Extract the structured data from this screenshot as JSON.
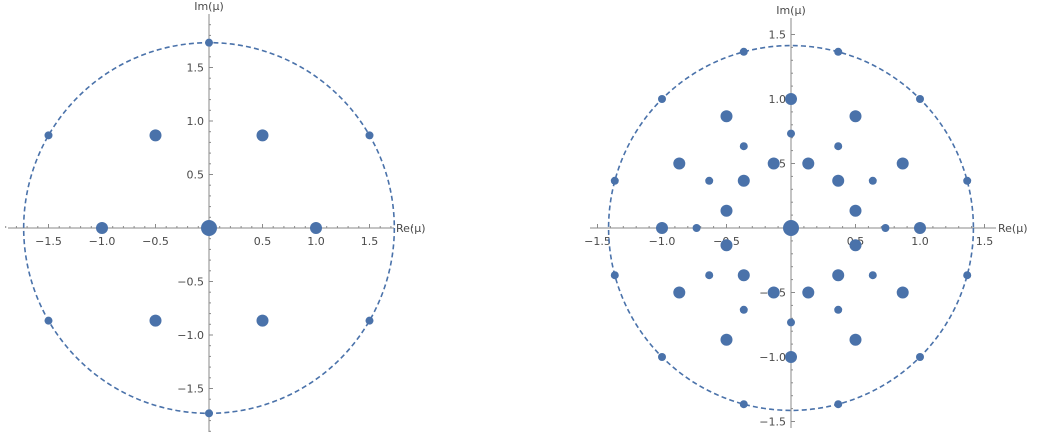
{
  "colors": {
    "points": "#4a72aa",
    "circle": "#4a72aa",
    "axis": "#8a8a8a"
  },
  "chart_data": [
    {
      "type": "scatter",
      "xlabel": "Re(μ)",
      "ylabel": "Im(μ)",
      "xlim": [
        -1.9,
        1.9
      ],
      "ylim": [
        -1.9,
        1.9
      ],
      "xticks": [
        -1.5,
        -1.0,
        -0.5,
        0.5,
        1.0,
        1.5
      ],
      "xtick_labels": [
        "−1.5",
        "−1.0",
        "−0.5",
        "0.5",
        "1.0",
        "1.5"
      ],
      "yticks": [
        -1.5,
        -1.0,
        -0.5,
        0.5,
        1.0,
        1.5
      ],
      "ytick_labels": [
        "−1.5",
        "−1.0",
        "−0.5",
        "0.5",
        "1.0",
        "1.5"
      ],
      "circle_radius": 1.732,
      "grid": false,
      "points": [
        {
          "x": 0,
          "y": 0,
          "size": "large"
        },
        {
          "x": 1.0,
          "y": 0,
          "size": "medium"
        },
        {
          "x": -1.0,
          "y": 0,
          "size": "medium"
        },
        {
          "x": 0.5,
          "y": 0.866,
          "size": "medium"
        },
        {
          "x": -0.5,
          "y": 0.866,
          "size": "medium"
        },
        {
          "x": 0.5,
          "y": -0.866,
          "size": "medium"
        },
        {
          "x": -0.5,
          "y": -0.866,
          "size": "medium"
        },
        {
          "x": 0,
          "y": 1.732,
          "size": "small"
        },
        {
          "x": 0,
          "y": -1.732,
          "size": "small"
        },
        {
          "x": 1.5,
          "y": 0.866,
          "size": "small"
        },
        {
          "x": -1.5,
          "y": 0.866,
          "size": "small"
        },
        {
          "x": 1.5,
          "y": -0.866,
          "size": "small"
        },
        {
          "x": -1.5,
          "y": -0.866,
          "size": "small"
        }
      ]
    },
    {
      "type": "scatter",
      "xlabel": "Re(μ)",
      "ylabel": "Im(μ)",
      "xlim": [
        -1.53,
        1.53
      ],
      "ylim": [
        -1.53,
        1.53
      ],
      "xticks": [
        -1.5,
        -1.0,
        -0.5,
        0.5,
        1.0,
        1.5
      ],
      "xtick_labels": [
        "−1.5",
        "−1.0",
        "−0.5",
        "0.5",
        "1.0",
        "1.5"
      ],
      "yticks": [
        -1.5,
        -1.0,
        -0.5,
        0.5,
        1.0,
        1.5
      ],
      "ytick_labels": [
        "−1.5",
        "−1.0",
        "−0.5",
        "0.5",
        "1.0",
        "1.5"
      ],
      "circle_radius": 1.414,
      "grid": false,
      "points": [
        {
          "x": 0,
          "y": 0,
          "size": "large"
        },
        {
          "x": 1.0,
          "y": 0,
          "size": "medium"
        },
        {
          "x": -1.0,
          "y": 0,
          "size": "medium"
        },
        {
          "x": 0,
          "y": 1.0,
          "size": "medium"
        },
        {
          "x": 0,
          "y": -1.0,
          "size": "medium"
        },
        {
          "x": 0.5,
          "y": 0.866,
          "size": "medium"
        },
        {
          "x": -0.5,
          "y": 0.866,
          "size": "medium"
        },
        {
          "x": 0.5,
          "y": -0.866,
          "size": "medium"
        },
        {
          "x": -0.5,
          "y": -0.866,
          "size": "medium"
        },
        {
          "x": 0.866,
          "y": 0.5,
          "size": "medium"
        },
        {
          "x": -0.866,
          "y": 0.5,
          "size": "medium"
        },
        {
          "x": 0.866,
          "y": -0.5,
          "size": "medium"
        },
        {
          "x": -0.866,
          "y": -0.5,
          "size": "medium"
        },
        {
          "x": 0.366,
          "y": 0.366,
          "size": "medium"
        },
        {
          "x": -0.366,
          "y": 0.366,
          "size": "medium"
        },
        {
          "x": 0.366,
          "y": -0.366,
          "size": "medium"
        },
        {
          "x": -0.366,
          "y": -0.366,
          "size": "medium"
        },
        {
          "x": 0.134,
          "y": 0.5,
          "size": "medium"
        },
        {
          "x": -0.134,
          "y": 0.5,
          "size": "medium"
        },
        {
          "x": 0.134,
          "y": -0.5,
          "size": "medium"
        },
        {
          "x": -0.134,
          "y": -0.5,
          "size": "medium"
        },
        {
          "x": 0.5,
          "y": 0.134,
          "size": "medium"
        },
        {
          "x": -0.5,
          "y": 0.134,
          "size": "medium"
        },
        {
          "x": 0.5,
          "y": -0.134,
          "size": "medium"
        },
        {
          "x": -0.5,
          "y": -0.134,
          "size": "medium"
        },
        {
          "x": 0,
          "y": 0.732,
          "size": "small"
        },
        {
          "x": 0,
          "y": -0.732,
          "size": "small"
        },
        {
          "x": 0.732,
          "y": 0,
          "size": "small"
        },
        {
          "x": -0.732,
          "y": 0,
          "size": "small"
        },
        {
          "x": 0.366,
          "y": 0.634,
          "size": "small"
        },
        {
          "x": -0.366,
          "y": 0.634,
          "size": "small"
        },
        {
          "x": 0.366,
          "y": -0.634,
          "size": "small"
        },
        {
          "x": -0.366,
          "y": -0.634,
          "size": "small"
        },
        {
          "x": 0.634,
          "y": 0.366,
          "size": "small"
        },
        {
          "x": -0.634,
          "y": 0.366,
          "size": "small"
        },
        {
          "x": 0.634,
          "y": -0.366,
          "size": "small"
        },
        {
          "x": -0.634,
          "y": -0.366,
          "size": "small"
        },
        {
          "x": 0.366,
          "y": 1.366,
          "size": "small"
        },
        {
          "x": -0.366,
          "y": 1.366,
          "size": "small"
        },
        {
          "x": 0.366,
          "y": -1.366,
          "size": "small"
        },
        {
          "x": -0.366,
          "y": -1.366,
          "size": "small"
        },
        {
          "x": 1.366,
          "y": 0.366,
          "size": "small"
        },
        {
          "x": -1.366,
          "y": 0.366,
          "size": "small"
        },
        {
          "x": 1.366,
          "y": -0.366,
          "size": "small"
        },
        {
          "x": -1.366,
          "y": -0.366,
          "size": "small"
        },
        {
          "x": 1.0,
          "y": 1.0,
          "size": "small"
        },
        {
          "x": -1.0,
          "y": 1.0,
          "size": "small"
        },
        {
          "x": 1.0,
          "y": -1.0,
          "size": "small"
        },
        {
          "x": -1.0,
          "y": -1.0,
          "size": "small"
        }
      ]
    }
  ]
}
